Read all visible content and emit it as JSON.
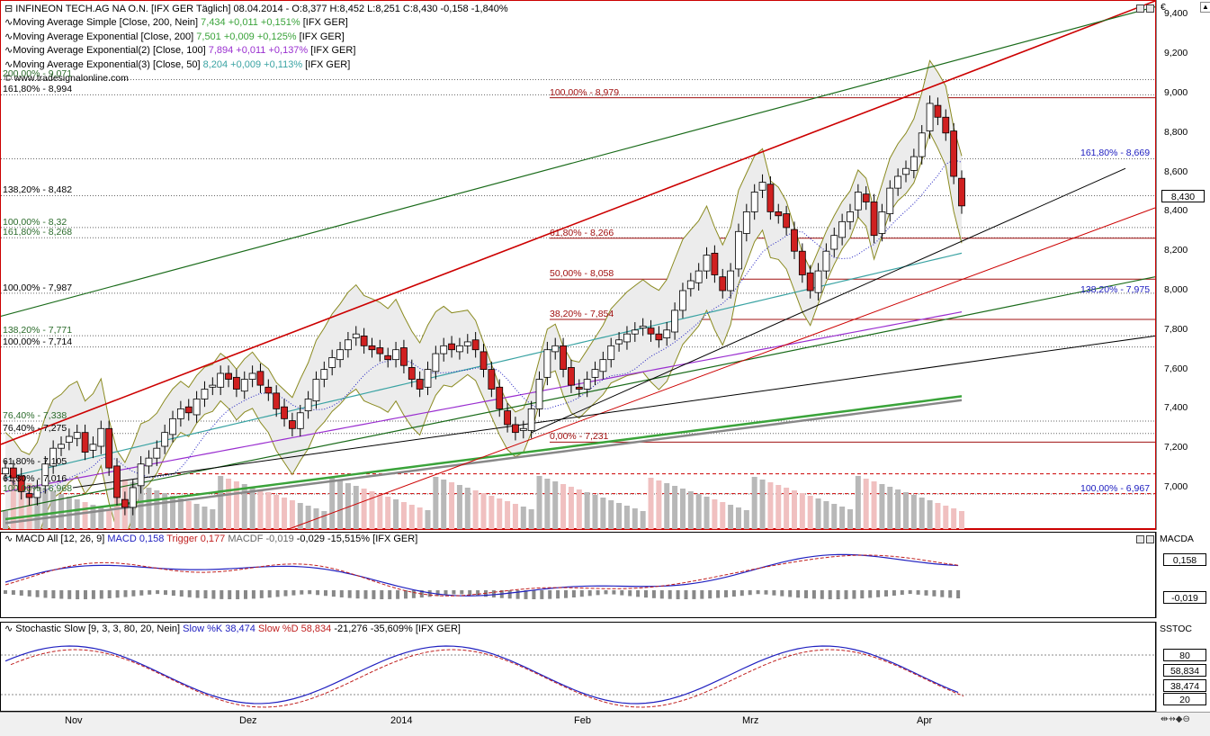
{
  "header": {
    "title": "INFINEON TECH.AG NA O.N. [IFX GER  Täglich] 08.04.2014 - O:8,377 H:8,452 L:8,251 C:8,430 -0,158 -1,840%",
    "title_color": "#c00000",
    "indicators": [
      {
        "text": "Moving Average Simple [Close, 200, Nein] ",
        "value": "7,434 +0,011 +0,151%",
        "suffix": " [IFX GER]",
        "color": "#3aa33a"
      },
      {
        "text": "Moving Average Exponential [Close, 200] ",
        "value": "7,501 +0,009 +0,125%",
        "suffix": " [IFX GER]",
        "color": "#3aa33a"
      },
      {
        "text": "Moving Average Exponential(2) [Close, 100] ",
        "value": "7,894 +0,011 +0,137%",
        "suffix": " [IFX GER]",
        "color": "#9a2fd0"
      },
      {
        "text": "Moving Average Exponential(3) [Close, 50] ",
        "value": "8,204 +0,009 +0,113%",
        "suffix": " [IFX GER]",
        "color": "#3aa3a3"
      }
    ],
    "watermark": "© www.tradesignalonline.com"
  },
  "price_axis": {
    "currency": "€",
    "ticks": [
      "9,400",
      "9,200",
      "9,000",
      "8,800",
      "8,600",
      "8,400",
      "8,200",
      "8,000",
      "7,800",
      "7,600",
      "7,400",
      "7,200",
      "7,000"
    ],
    "last_price": "8,430"
  },
  "fib_labels": [
    {
      "text": "200,00% - 9,071",
      "price": 9.071,
      "color": "#2b6b2b",
      "side": "left"
    },
    {
      "text": "161,80% - 8,994",
      "price": 8.994,
      "color": "#000000",
      "side": "left"
    },
    {
      "text": "138,20% - 8,482",
      "price": 8.482,
      "color": "#000000",
      "side": "left"
    },
    {
      "text": "100,00% - 8,32",
      "price": 8.32,
      "color": "#2b6b2b",
      "side": "left"
    },
    {
      "text": "161,80% - 8,268",
      "price": 8.268,
      "color": "#2b6b2b",
      "side": "left"
    },
    {
      "text": "100,00% - 7,987",
      "price": 7.987,
      "color": "#000000",
      "side": "left"
    },
    {
      "text": "138,20% - 7,771",
      "price": 7.771,
      "color": "#2b6b2b",
      "side": "left"
    },
    {
      "text": "100,00% - 7,714",
      "price": 7.714,
      "color": "#000000",
      "side": "left"
    },
    {
      "text": "76,40% - 7,338",
      "price": 7.338,
      "color": "#2b6b2b",
      "side": "left"
    },
    {
      "text": "76,40% - 7,275",
      "price": 7.275,
      "color": "#000000",
      "side": "left"
    },
    {
      "text": "61,80% - 7,105",
      "price": 7.105,
      "color": "#000000",
      "side": "left"
    },
    {
      "text": "61,80% - 7,016",
      "price": 7.016,
      "color": "#000000",
      "side": "left"
    },
    {
      "text": "100,00% - 6,968",
      "price": 6.968,
      "color": "#2b6b2b",
      "side": "left"
    },
    {
      "text": "100,00% - 8,979",
      "price": 8.979,
      "color": "#a01010",
      "side": "mid"
    },
    {
      "text": "61,80% - 8,266",
      "price": 8.266,
      "color": "#a01010",
      "side": "mid"
    },
    {
      "text": "50,00% - 8,058",
      "price": 8.058,
      "color": "#a01010",
      "side": "mid"
    },
    {
      "text": "38,20% - 7,854",
      "price": 7.854,
      "color": "#a01010",
      "side": "mid"
    },
    {
      "text": "0,00% - 7,231",
      "price": 7.231,
      "color": "#a01010",
      "side": "mid"
    },
    {
      "text": "161,80% - 8,669",
      "price": 8.669,
      "color": "#2020c0",
      "side": "right"
    },
    {
      "text": "138,20% - 7,975",
      "price": 7.975,
      "color": "#2020c0",
      "side": "right"
    },
    {
      "text": "100,00% - 6,967",
      "price": 6.967,
      "color": "#2020c0",
      "side": "right"
    }
  ],
  "macd": {
    "label": "MACD All [12, 26, 9] ",
    "macd": "MACD 0,158",
    "trigger": "Trigger 0,177",
    "macdf": "MACDF -0,019",
    "change": " -0,029 -15,515% [IFX GER]",
    "axis_title": "MACDA",
    "box1": "0,158",
    "box2": "-0,019"
  },
  "stoch": {
    "label": "Stochastic Slow [9, 3, 3, 80, 20, Nein] ",
    "k": "Slow %K 38,474",
    "d": "Slow %D 58,834",
    "change": " -21,276 -35,609% [IFX GER]",
    "axis_title": "SSTOC",
    "ticks": [
      "80",
      "20"
    ],
    "box_d": "58,834",
    "box_k": "38,474"
  },
  "time_axis": [
    "Nov",
    "Dez",
    "2014",
    "Feb",
    "Mrz",
    "Apr"
  ],
  "chart_data": {
    "type": "candlestick",
    "title": "INFINEON TECH.AG NA O.N. [IFX GER  Täglich]",
    "ylim": [
      6.85,
      9.5
    ],
    "last": {
      "date": "08.04.2014",
      "open": 8.377,
      "high": 8.452,
      "low": 8.251,
      "close": 8.43
    },
    "close_series": [
      7.1,
      7.05,
      6.98,
      6.95,
      7.0,
      7.12,
      7.2,
      7.22,
      7.26,
      7.28,
      7.18,
      7.22,
      7.3,
      7.1,
      6.95,
      6.9,
      7.0,
      7.12,
      7.15,
      7.2,
      7.28,
      7.35,
      7.4,
      7.38,
      7.45,
      7.5,
      7.52,
      7.58,
      7.55,
      7.5,
      7.55,
      7.58,
      7.52,
      7.48,
      7.4,
      7.35,
      7.3,
      7.38,
      7.45,
      7.55,
      7.6,
      7.66,
      7.7,
      7.75,
      7.78,
      7.72,
      7.7,
      7.68,
      7.65,
      7.7,
      7.62,
      7.55,
      7.5,
      7.6,
      7.68,
      7.72,
      7.7,
      7.72,
      7.74,
      7.7,
      7.6,
      7.5,
      7.4,
      7.32,
      7.28,
      7.3,
      7.4,
      7.55,
      7.7,
      7.72,
      7.6,
      7.52,
      7.5,
      7.55,
      7.6,
      7.65,
      7.72,
      7.75,
      7.78,
      7.8,
      7.82,
      7.78,
      7.75,
      7.8,
      7.9,
      8.0,
      8.05,
      8.1,
      8.18,
      8.08,
      8.0,
      8.1,
      8.3,
      8.4,
      8.5,
      8.55,
      8.4,
      8.38,
      8.32,
      8.2,
      8.08,
      8.0,
      8.1,
      8.2,
      8.28,
      8.35,
      8.4,
      8.5,
      8.45,
      8.28,
      8.4,
      8.52,
      8.58,
      8.62,
      8.68,
      8.8,
      8.95,
      8.88,
      8.8,
      8.58,
      8.43
    ],
    "ma200_simple": "7,434",
    "ema200": "7,501",
    "ema100": "7,894",
    "ema50": "8,204"
  }
}
